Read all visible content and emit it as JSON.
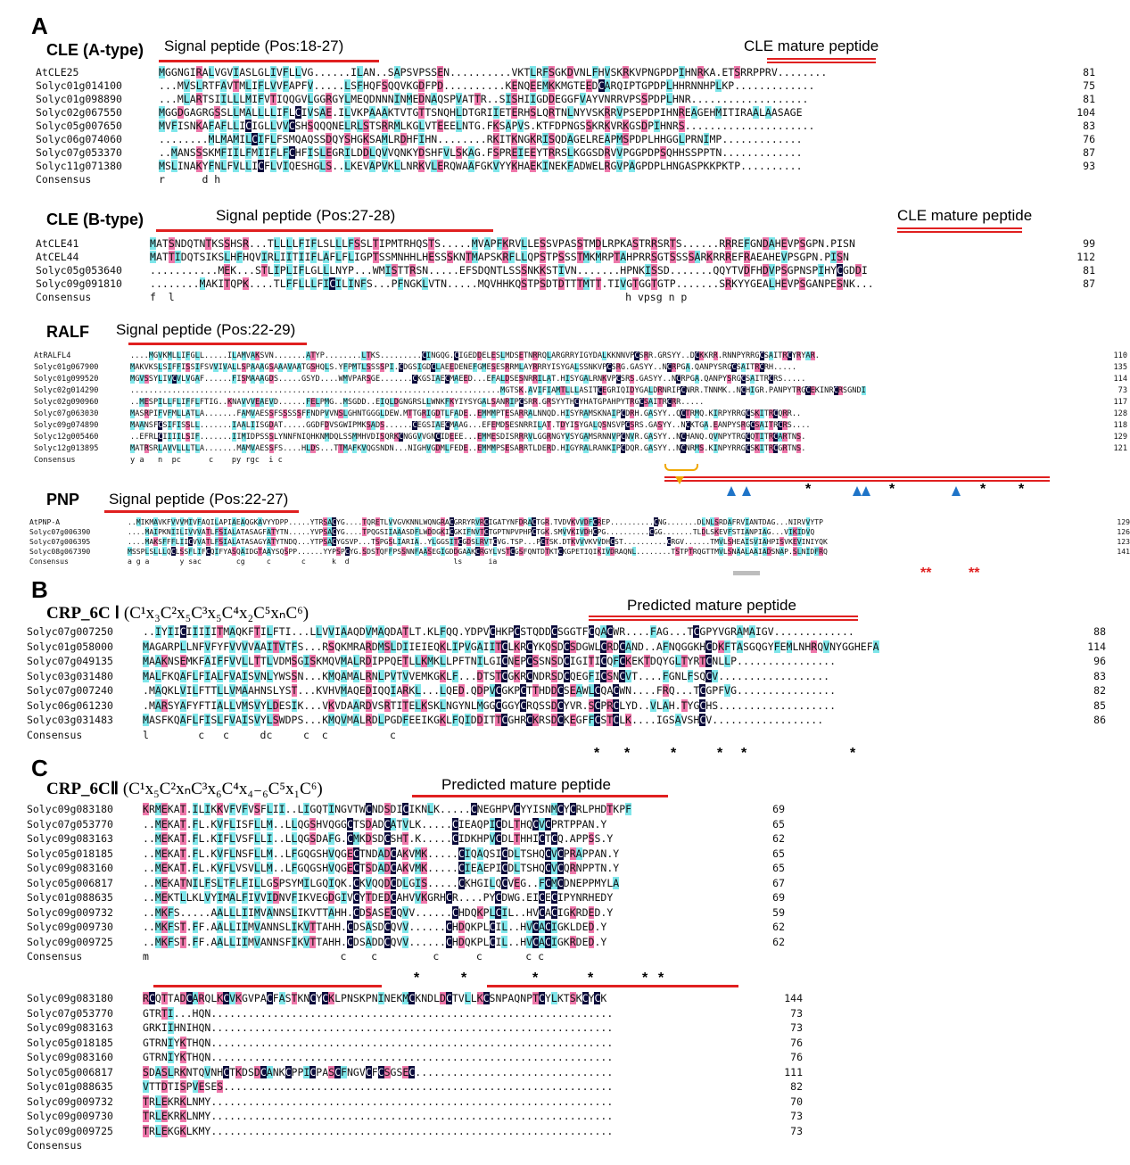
{
  "panels": {
    "A": "A",
    "B": "B",
    "C": "C"
  },
  "clea": {
    "title": "CLE (A-type)",
    "signal": "Signal peptide (Pos:18-27)",
    "mature": "CLE mature peptide",
    "rows": [
      {
        "name": "AtCLE25",
        "seq": "MGGNGIRALVGVIASLGLIVFLLVG......ILAN..SAPSVPSSEN..........VKTLRFSGKDVNLFHVSKRKVPNGPDPIHNRKA.ETSRRPPRV........",
        "len": "81"
      },
      {
        "name": "Solyc01g014100",
        "seq": "...MVSLRTFAVTMLIFLVVFAPFV.....LSFHQFSQQVKGDFPD..........KENQEEMKKMGTEEDCARQIPTGPDPLHHRNNHPLKP.............",
        "len": "75"
      },
      {
        "name": "Solyc01g098890",
        "seq": "...MLARTSIILLLMIFVTIQQGVLGGRGYLMEQDNNNINMEDNAQSPVATTR..SISHIIGDDEGGFVAYVNRRVPSSPDPLHNR...................",
        "len": "81"
      },
      {
        "name": "Solyc02g067550",
        "seq": "MGGDGAGRGSSLLMALLLLIFLCIVSAE.ILVKPAAAKTVTGTTSNQHLDTGRIIETERHSLQRTNLNYVSKRRVPSEPDPIHNREAGEHMITIRAALAASAGE",
        "len": "104"
      },
      {
        "name": "Solyc05g007650",
        "seq": "MVFISNKAFAFLLICIGLLVVCSHSQQQNELRLSTSRRMLKGLVTEEELNTG.FKSAPVS.KTFDPNGSSKRKVRKGSDPIHNRS.....................",
        "len": "83"
      },
      {
        "name": "Solyc06g074060",
        "seq": "........MLMAMILCIFLFSMQAQSSDQYSHGKSAMLRDHFIHN........RKITKNGKRISQDAGELREAPMSPDPLHHGGLPRNIMP.............",
        "len": "76"
      },
      {
        "name": "Solyc07g053370",
        "seq": "..MANSSSKMFIILFMIIFLFCHFISLEGRILDDLQVVQNKYDSHFVLSKAG.FSPREIEEYTRRSLKGGSDRVVPGGPDPSQHHSSPPTN.............",
        "len": "87"
      },
      {
        "name": "Solyc11g071380",
        "seq": "MSLINAKYFNLFVLLICFLVIQESHGLS..LKEVAPVKLLNRKVLERQWAAFGKVYYKHAEKINEKFADWELRGVPAGPDPLHNGASPKKPKTP..........",
        "len": "93"
      }
    ],
    "consensus_label": "Consensus",
    "consensus": "r      d h"
  },
  "cleb": {
    "title": "CLE (B-type)",
    "signal": "Signal peptide (Pos:27-28)",
    "mature": "CLE mature peptide",
    "rows": [
      {
        "name": "AtCLE41",
        "seq": "MATSNDQTNTKSSHSR...TLLLLFIFLSLLLFSSLTIPMTRHQSTS.....MVAPFKRVLLESSVPASSTMDLRPKASTRRSRTS......RRREFGNDAHEVPSGPN.PISN",
        "len": "99"
      },
      {
        "name": "AtCEL44",
        "seq": "MATTIDQTSIKSLHFHQVIRLIITIIFLAFLFLIGPTSSMNHHLHESSSKNTMAPSKRFLLQPSTPSSSTMKMRPTAHPRRSGTSSSSARKRRREFRAEAHEVPSGPN.PISN",
        "len": "112"
      },
      {
        "name": "Solyc05g053640",
        "seq": "...........MEK...STLIPLIFLGLLLNYP...WMISTTRSN.....EFSDQNTLSSSNKKSTIVN.......HPNKISSD.......QQYTVDFHDVPSGPNSPIHYCGDDI",
        "len": "81"
      },
      {
        "name": "Solyc09g091810",
        "seq": "........MAKITQPK....TLFFLLLFICILINFS...PFNGKLVTN.....MQVHHKQSTPSDTDTTTMTT.TIVGTGGTGTP.......SRKYYGEALHEVPSGANPESNK...",
        "len": "87"
      }
    ],
    "consensus_label": "Consensus",
    "consensus": "f  l                                                                         h vpsg n p"
  },
  "ralf": {
    "title": "RALF",
    "signal": "Signal peptide (Pos:22-29)",
    "rows": [
      {
        "name": "AtRALFL4",
        "seq": "....MGVKMLLIFGLL.....ILAMVAKSVN.......ATYP........LTKS.........CINGQG.CIGEDDELESLMDSETNRRQLARGRRYIGYDALKKNNVPCSRR.GRSYY..DCKKRR.RNNPYRRGCSAITRCYRYAR.",
        "len": "110"
      },
      {
        "name": "Solyc01g067900",
        "seq": "MAKVKSLSIFFISSIFSVVIVALLSPAAAGSAAAVAATGSHQLS.YFPMTLSSSSPI.CDGSIGDCLAEEDENEFGMESESRRMLAYRRRYISYGALSSNKVPCSRG.GASYY..NCRPGA.QANPYSRGCSAITRCRH.....",
        "len": "135"
      },
      {
        "name": "Solyc01g099520",
        "seq": "MGVSSYLIVCVLVGAF......FISMAAAGDS.....GSYD....WMVPARSGE.......CKGSIAECMAEED...EFALDSESNRRILAT.HISYGALRNKVPCSRS.GASYY..NCRPGA.QANPYSRGCSAITRCRS.....",
        "len": "114"
      },
      {
        "name": "Solyc02g014290",
        "seq": "................................................................................MGTSK.AVIFIAMTLLLASITCEGRIQIDYGALDRNRIPCNRR.TNNMK..NCHIGR.PANPYTRGCEKINRCRSGNDI",
        "len": "73"
      },
      {
        "name": "Solyc02g090960",
        "seq": "..MESPILLFLIFFLFTIG..KNAVVVEAEVD......FELPMG..MSGDD..EIQLDGNGRSLLWNKFKYIYSYGALSANRIPCSRR.GRSYYTHCYHATGPAHPYTRGCSAITRCRR.....",
        "len": "117"
      },
      {
        "name": "Solyc07g063030",
        "seq": "MASRPIFVFMLLATLA.......FAMVAESSFSSSSSFFNDPVVNSLGHNTGGGLDEW.MTTGRIGDTLFADE..EMMMPTESARRALNNQD.HISYRAMSKNAIPCDRH.GASYY..QCTRMQ.KIRPYRRGCSKITRCQRR..",
        "len": "128"
      },
      {
        "name": "Solyc09g074890",
        "seq": "MAANSFCSIFISSLL.......IAALIISGDAT.....GGDFDVSGWIPMKSADS......CEGSIAECMAAG...EFEMDSESNRRILAT.TDYISYGALQSNSVPCSRS.GASYY..NCKTGA.EANPYSRGCSAITRCRS....",
        "len": "118"
      },
      {
        "name": "Solyc12g005460",
        "seq": "..EFRLCIIIILSIF.......IIMIDPSSSLYNNFNIQHKNMDQLSSMMHVDISQRKCNGGVVGNCIDEEE...EMMESDISRRRVLGGRNGYVSYGAMSRNNVPCNVR.GASYY..NCHANQ.QVNPYTRGCQTITRCARTNS.",
        "len": "129"
      },
      {
        "name": "Solyc12g013895",
        "seq": "MATRSRLAVVLLLTLA.......MAMVAESSFS....HLDS...TTMAFKVQGSNDN...NIGHVGDMLFEDE..EMMMPSESARRTLDERD.HIGYRALRANKIPCDQR.GASYY..NCNRMS.KINPYRRGCSKITRCGRTNS.",
        "len": "121"
      }
    ],
    "consensus_label": "Consensus",
    "consensus": "y a   n  pc      c    py rgc  i c"
  },
  "pnp": {
    "title": "PNP",
    "signal": "Signal peptide (Pos:22-27)",
    "rows": [
      {
        "name": "AtPNP-A",
        "seq": "..MIKMAVKFVVVMIVFAQILAPIAEAQGKAVYYDPP.....YTRSACYG....TQRETLVVGVKNNLWQNGRACGRRYRVRCIGATYNFDRACTGR.TVDVKVVDFCREP..........CNG.......DLNLSRDAFRVIANTDAG...NIRVVYTP",
        "len": "129"
      },
      {
        "name": "Solyc07g006390",
        "seq": "....MAIPKNIILIVVVATLFSIALATASAGFATYTN.....YVPSACYG....TPQGSIIAAASDFLWDDGKICGKIFNVTCTGPTNPVPHPCTGK.SMVVKIVDHCPG..........CGG.......TLDLSKEVFSTIANPIAG...VIKIDVQ",
        "len": "126"
      },
      {
        "name": "Solyc07g006395",
        "seq": "....MAKSFFFLIICVVATLFSIALATASAGYATYTNDQ...YTPSACYGSVP...TSPGSLIARIA..YLGGSITCGDSLRVTCVG.TSP...PCTSK.DTKVVVKVVDHCST..........CRGV......TMVLSHEAISVIAHPISVKEVINIYQK",
        "len": "123"
      },
      {
        "name": "Solyc08g067390",
        "seq": "MSSPLSLLLQCLSSFLIFCQIFYASQAIDGTAAYSQSPP......YYPSPCYG.SDSTQFFPSSNNFAASEGIGDDGAAKCRGYLVSTCGSFQNTDTKTCKGPETIQIKIVDRAQNL........TSTPTRQGTTMVLSNAALAAIADSNAP.SLNIDFRQ",
        "len": "141"
      }
    ],
    "consensus_label": "Consensus",
    "consensus": "a g a       y sac        cg     c       c      k  d                        ls      ia"
  },
  "crpi": {
    "title": "CRP_6C Ⅰ",
    "formula": "(C¹x₃C²x₅C³x₅C⁴x₂C⁵xₙC⁶)",
    "mature": "Predicted mature peptide",
    "rows": [
      {
        "name": "Solyc07g007250",
        "seq": "..IYIICIIIIITMAQKFTILFTI...LLVVIAAQDVMAQDATLT.KLFQQ.YDPVCHKPCSTQDDCSGGTFCQACWR....FAG...TCGPYVGRAMAIGV.............",
        "len": "88"
      },
      {
        "name": "Solyc01g058000",
        "seq": "MAGARPLLNFVFYFVVVVAAITVTFS...RSQKMRARDMSLDIIEIEQKLIPVGAIITCLKRCYKQSDCSDGWLCRDCAND..AFNQGGKHCDKFTASGQGYFEMLNHRQVNYGGHEFA",
        "len": "114"
      },
      {
        "name": "Solyc07g049135",
        "seq": "MAAKNSEMKFAIFFVVLLTTLVDMSGISKMQVMALRDIPPQETLLKMKLLPFTNILGICNEPCSSNSDCIGITICQFCKEKTDQYGLTYRTCNLLP................",
        "len": "96"
      },
      {
        "name": "Solyc03g031480",
        "seq": "MALFKQAFLFIALFVAISVNLYWSSN...KMQAMALRNLPVTVVEMKGKLF...DTSTCGKRCNDRSDCQEGFICSNCVT....FGNLFSQCV..................",
        "len": "83"
      },
      {
        "name": "Solyc07g007240",
        "seq": ".MAQKLVILFTTLLVMAAHNSLYST...KVHVMAQEDIQQIARKL...LQED.QDPVCGKPCTTHDDCSEAWLCQACWN....FRQ...TCGPFVG................",
        "len": "82"
      },
      {
        "name": "Solyc06g061230",
        "seq": ".MARSYAFYFTIALLVMSVYLDESIK...VKVDAARDVSRTITELKSKLNGYNLMGGCGGYCRQSSDCYVR.SCPRCLYD..VLAH.TYGCHS...................",
        "len": "85"
      },
      {
        "name": "Solyc03g031483",
        "seq": "MASFKQAFLFISLFVAISVYLSWDPS...KMQVMALRDLPGDFEEIKGKLFQIDDITTCGHRCKRSDCKEGFFCSTCLK....IGSAVSHCV..................",
        "len": "86"
      }
    ],
    "consensus_label": "Consensus",
    "consensus": "l        c   c     dc     c  c          c"
  },
  "crpii": {
    "title": "CRP_6CⅡ",
    "formula": "(C¹x₅C²xₙC³x₆C⁴x₄₋₆C⁵x₁C⁶)",
    "mature": "Predicted mature peptide",
    "rows": [
      {
        "name": "Solyc09g083180",
        "seq": "KRMEKAT.ILIKKVFVFVSFLII..LIGQTINGVTWCNDSDICIKNLK.....CNEGHPVCYYISNMCYCRLPHDTKPF",
        "len": "69"
      },
      {
        "name": "Solyc07g053770",
        "seq": "..MEKAT.FL.KVFLISFLLM..LLQGSHVQGGCTSDADCATVLK.....CIEAQPICDLTHQCVCPRTPPAN.Y",
        "len": "65"
      },
      {
        "name": "Solyc09g083163",
        "seq": "..MEKAT.FL.KIFLVSFLLI..LLQGSDAFG.CMKDSDCSHT.K.....CIDKHPVCDLTHHICTCQ.APPSS.Y",
        "len": "62"
      },
      {
        "name": "Solyc05g018185",
        "seq": "..MEKAT.FL.KVFLNSFLLM..LFGQGSHVQGECTNDADCAKVMK.....CIQAQSICDLTSHQCVCPRAPPAN.Y",
        "len": "65"
      },
      {
        "name": "Solyc09g083160",
        "seq": "..MEKAT.FL.KVFLVSVLLM..LFGQGSHVQGECTSDADCAKVMK.....CIEAEPICDLTSHQCVCQRNPPTN.Y",
        "len": "65"
      },
      {
        "name": "Solyc05g006817",
        "seq": "..MEKATNILFSLTFLFILLGSPSYMILGQIQK.CKVQQDCDLGIS.....CKHGILQCVEG..FCMCDNEPPMYLA",
        "len": "67"
      },
      {
        "name": "Solyc01g088635",
        "seq": "..MEKTLLKLVYIMALFIVVIDNVFIKVEGDGIVCYTDEDCAHVVKGRHCR....PYCDWG.EICECIPYNRHEDY",
        "len": "69"
      },
      {
        "name": "Solyc09g009732",
        "seq": "..MKFS.....AALLLIIMVANNSLIKVTTAHH.CDSASECQVV......CHDQKPLCIL..HVCACIGKRDED.Y",
        "len": "59"
      },
      {
        "name": "Solyc09g009730",
        "seq": "..MKFST.FF.AALLIIMVANNSLIKVTTAHH.CDSASDCQVV......CHDQKPLCIL..HVCACIGKLDED.Y",
        "len": "62"
      },
      {
        "name": "Solyc09g009725",
        "seq": "..MKFST.FF.AALLIIMVANNSFIKVTTAHH.CDSADDCQVV......CHDQKPLCIL..HVCACIGKRDED.Y",
        "len": "62"
      }
    ],
    "consensus_label": "Consensus",
    "consensus": "m                               c    c         c      c       c c",
    "rows2": [
      {
        "name": "Solyc09g083180",
        "seq": "RCQTTADCARQLKCVKGVPACFASTKNCYCKLPNSKPNINEKMCKNDLDCTVLLKCSNPAQNPTCYLKTSKCYCK",
        "len": "144"
      },
      {
        "name": "Solyc07g053770",
        "seq": "GTRTI...HQN.................................................................",
        "len": "73"
      },
      {
        "name": "Solyc09g083163",
        "seq": "GRKIIHNIHQN.................................................................",
        "len": "73"
      },
      {
        "name": "Solyc05g018185",
        "seq": "GTRNIYKTHQN.................................................................",
        "len": "76"
      },
      {
        "name": "Solyc09g083160",
        "seq": "GTRNIYKTHQN.................................................................",
        "len": "76"
      },
      {
        "name": "Solyc05g006817",
        "seq": "SDASLRKNTQVNHCTKDSDCANKCPPICPASCFNGVCFCSGSEC................................",
        "len": "111"
      },
      {
        "name": "Solyc01g088635",
        "seq": "VTTDTISPVESES...............................................................",
        "len": "82"
      },
      {
        "name": "Solyc09g009732",
        "seq": "TRLEKRKLNMY.................................................................",
        "len": "70"
      },
      {
        "name": "Solyc09g009730",
        "seq": "TRLEKRKLNMY.................................................................",
        "len": "73"
      },
      {
        "name": "Solyc09g009725",
        "seq": "TRLEKGKLKMY.................................................................",
        "len": "73"
      }
    ],
    "consensus2_label": "Consensus"
  }
}
